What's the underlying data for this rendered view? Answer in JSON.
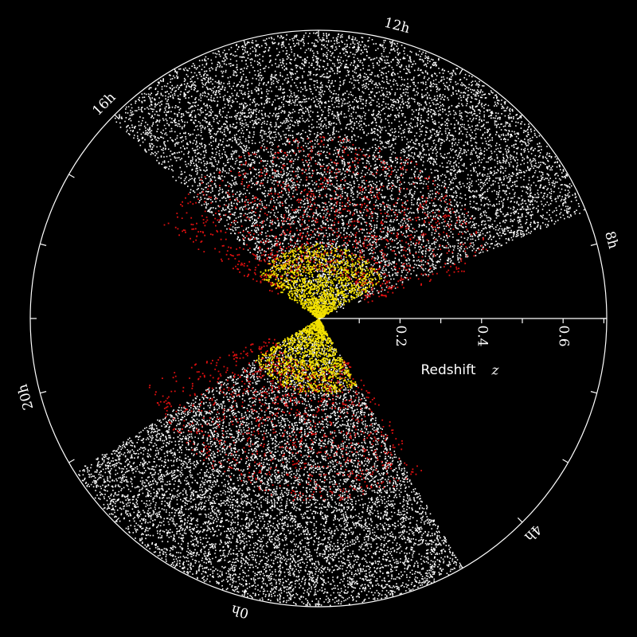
{
  "hour_labels": [
    "12h",
    "16h",
    "20h",
    "0h",
    "4h",
    "8h"
  ],
  "redshift_axis": {
    "ticks": [
      "0.2",
      "0.4",
      "0.6"
    ],
    "label": "Redshift",
    "symbol": "z"
  }
}
